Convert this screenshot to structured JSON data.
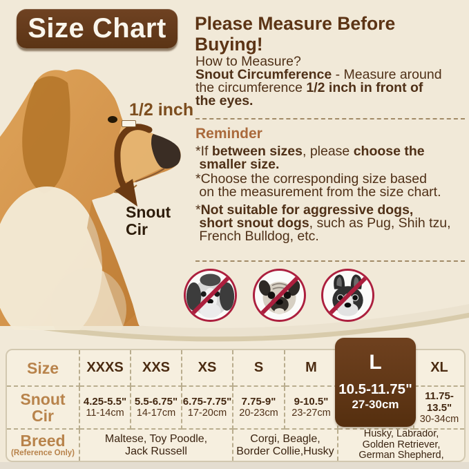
{
  "colors": {
    "background": "#f1e9d8",
    "dark_brown": "#5b3415",
    "text_brown": "#4f3017",
    "reminder_orange": "#aa6a3c",
    "tan_label": "#b8834b",
    "prohibition_red": "#ac1f3e",
    "table_bg": "#f6efdf"
  },
  "header": {
    "badge": "Size Chart",
    "title": "Please Measure Before Buying!"
  },
  "measure": {
    "heading": "How to Measure?",
    "paragraph": [
      {
        "t": "Snout Circumference",
        "b": true
      },
      {
        "t": " - Measure around\nthe circumference "
      },
      {
        "t": "1/2 inch in front of\nthe eyes.",
        "b": true
      }
    ]
  },
  "reminder": {
    "heading": "Reminder",
    "items": [
      [
        {
          "t": "*If "
        },
        {
          "t": "between sizes",
          "b": true
        },
        {
          "t": ", please "
        },
        {
          "t": "choose the\n smaller size.",
          "b": true
        }
      ],
      [
        {
          "t": "*Choose the corresponding size based\n on the measurement from the size chart."
        }
      ],
      [
        {
          "t": "*"
        },
        {
          "t": "Not suitable for aggressive dogs,\n short snout dogs",
          "b": true
        },
        {
          "t": ", such as Pug, Shih tzu,\n French Bulldog, etc."
        }
      ]
    ]
  },
  "dog_annotations": {
    "half_inch": "1/2 inch",
    "snout_cir": "Snout\nCir"
  },
  "banned_dogs": [
    {
      "icon": "shih-tzu-icon"
    },
    {
      "icon": "pug-icon"
    },
    {
      "icon": "french-bulldog-icon"
    }
  ],
  "table": {
    "row_labels": {
      "size": "Size",
      "snout": "Snout\nCir",
      "breed": "Breed",
      "breed_note": "(Reference Only)"
    },
    "columns": [
      {
        "size": "XXXS",
        "inch": "4.25-5.5\"",
        "cm": "11-14cm"
      },
      {
        "size": "XXS",
        "inch": "5.5-6.75\"",
        "cm": "14-17cm"
      },
      {
        "size": "XS",
        "inch": "6.75-7.75\"",
        "cm": "17-20cm"
      },
      {
        "size": "S",
        "inch": "7.75-9\"",
        "cm": "20-23cm"
      },
      {
        "size": "M",
        "inch": "9-10.5\"",
        "cm": "23-27cm"
      },
      {
        "size": "L",
        "inch": "10.5-11.75\"",
        "cm": "27-30cm",
        "highlight": true
      },
      {
        "size": "XL",
        "inch": "11.75-13.5\"",
        "cm": "30-34cm"
      }
    ],
    "breeds": [
      {
        "span": 3,
        "text": "Maltese, Toy Poodle,\nJack Russell",
        "small": false
      },
      {
        "span": 2,
        "text": "Corgi, Beagle,\nBorder Collie,Husky",
        "small": false
      },
      {
        "span": 2,
        "text": "Husky, Labrador,\nGolden Retriever,\nGerman Shepherd,",
        "small": true
      }
    ]
  }
}
